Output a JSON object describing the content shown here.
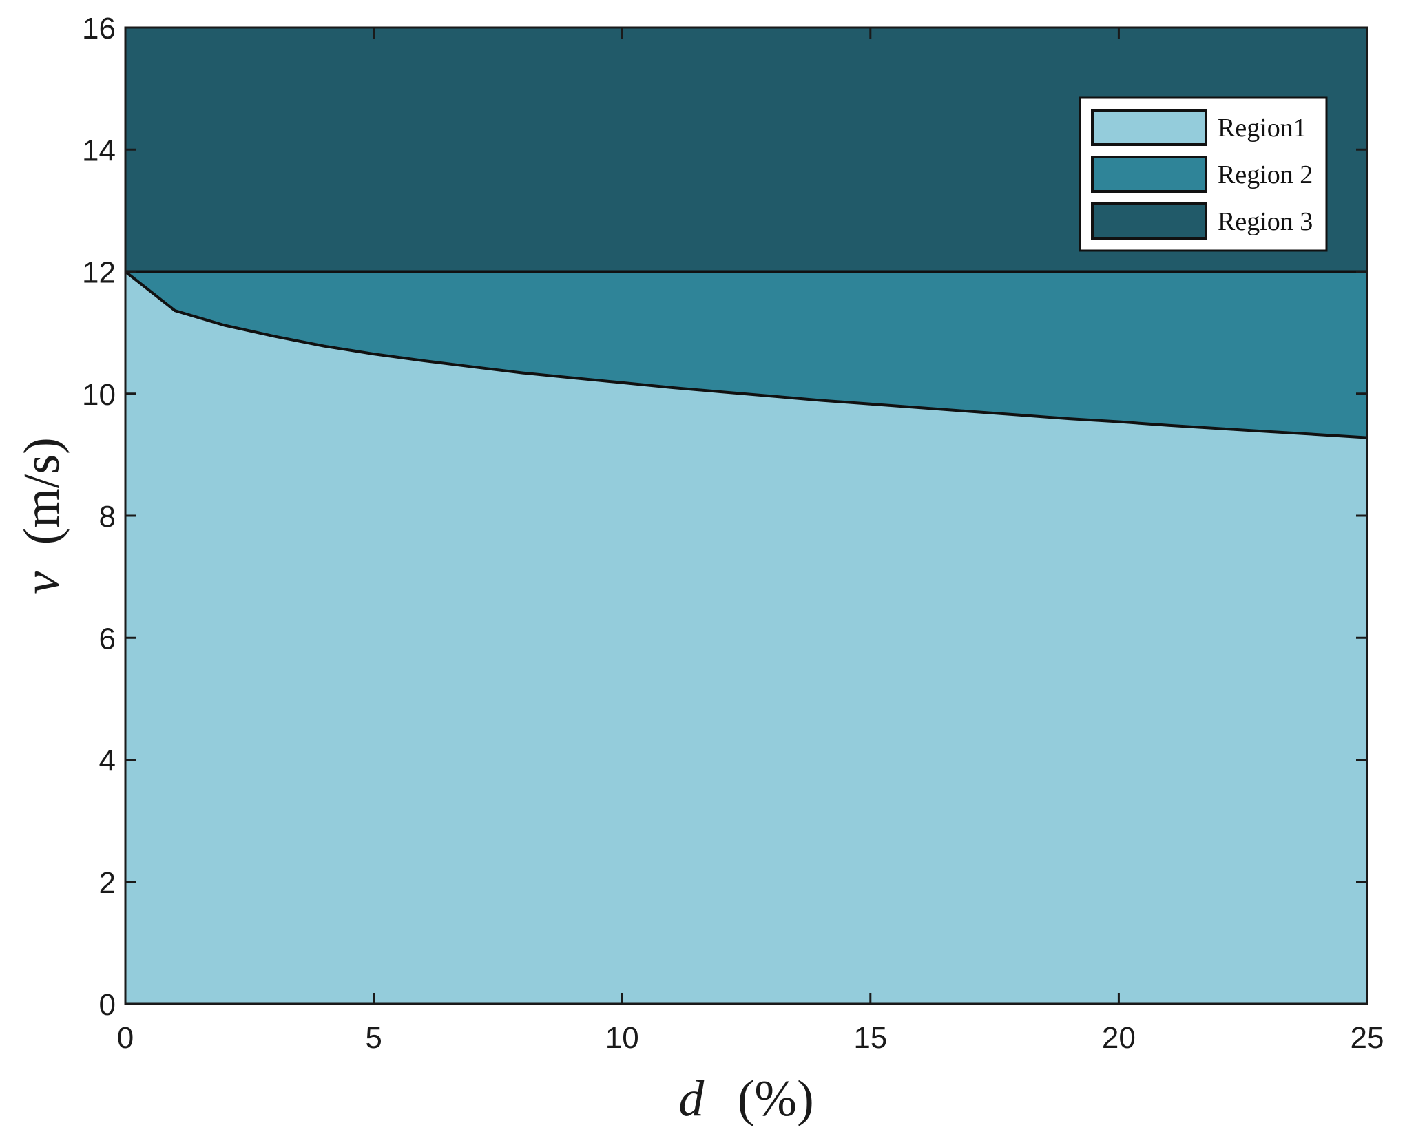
{
  "chart_data": {
    "type": "area",
    "xlabel_symbol": "d",
    "xlabel_unit": "(%)",
    "ylabel_symbol": "v",
    "ylabel_unit": "(m/s)",
    "xlim": [
      0,
      25
    ],
    "ylim": [
      0,
      16
    ],
    "xticks": [
      0,
      5,
      10,
      15,
      20,
      25
    ],
    "yticks": [
      0,
      2,
      4,
      6,
      8,
      10,
      12,
      14,
      16
    ],
    "grid": false,
    "legend_position": "top-right",
    "regions": [
      {
        "name": "Region1",
        "color": "#94ccdb",
        "lower": "zero",
        "upper": "boundary"
      },
      {
        "name": "Region 2",
        "color": "#2f8498",
        "lower": "boundary",
        "upper": 12
      },
      {
        "name": "Region 3",
        "color": "#215a69",
        "lower": 12,
        "upper": 16
      }
    ],
    "boundary": {
      "x": [
        0,
        1,
        2,
        3,
        4,
        5,
        6,
        7,
        8,
        9,
        10,
        11,
        12,
        13,
        14,
        15,
        16,
        17,
        18,
        19,
        20,
        21,
        22,
        23,
        24,
        25
      ],
      "y": [
        12.0,
        11.36,
        11.12,
        10.94,
        10.78,
        10.65,
        10.54,
        10.44,
        10.34,
        10.26,
        10.18,
        10.1,
        10.03,
        9.96,
        9.89,
        9.83,
        9.77,
        9.71,
        9.65,
        9.59,
        9.54,
        9.48,
        9.43,
        9.38,
        9.33,
        9.28
      ]
    },
    "threshold": 12
  }
}
